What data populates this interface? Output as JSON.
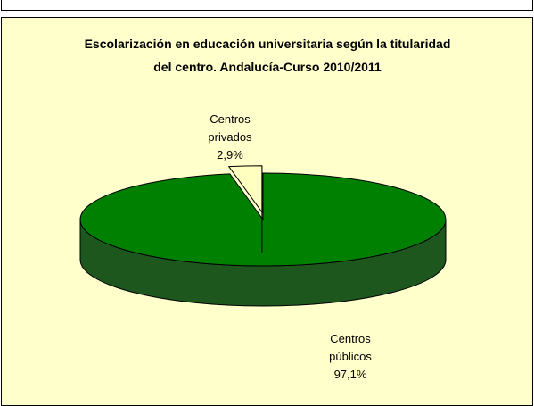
{
  "chart_data": {
    "type": "pie",
    "title": "Escolarización en educación universitaria según la titularidad del centro. Andalucía-Curso 2010/2011",
    "categories": [
      "Centros privados",
      "Centros públicos"
    ],
    "values": [
      2.9,
      97.1
    ],
    "value_labels": [
      "2,9%",
      "97,1%"
    ],
    "colors": [
      "#ffffc0",
      "#008000"
    ]
  }
}
